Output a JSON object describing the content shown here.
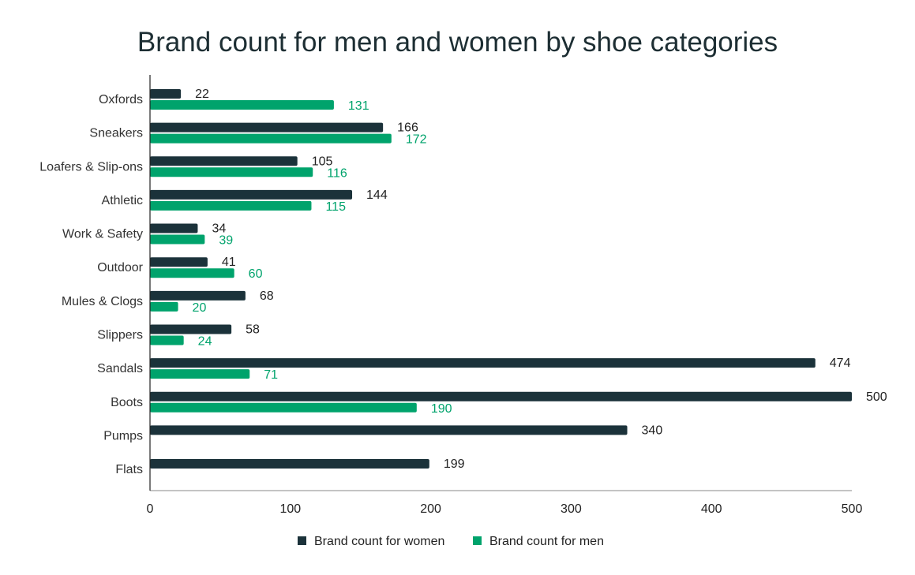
{
  "chart_data": {
    "type": "bar",
    "orientation": "horizontal",
    "title": "Brand count for men and women by shoe categories",
    "categories": [
      "Oxfords",
      "Sneakers",
      "Loafers & Slip-ons",
      "Athletic",
      "Work & Safety",
      "Outdoor",
      "Mules & Clogs",
      "Slippers",
      "Sandals",
      "Boots",
      "Pumps",
      "Flats"
    ],
    "series": [
      {
        "name": "Brand count for women",
        "color": "#1b323a",
        "values": [
          22,
          166,
          105,
          144,
          34,
          41,
          68,
          58,
          474,
          500,
          340,
          199
        ]
      },
      {
        "name": "Brand count for men",
        "color": "#00a36c",
        "values": [
          131,
          172,
          116,
          115,
          39,
          60,
          20,
          24,
          71,
          190,
          null,
          null
        ]
      }
    ],
    "xlim": [
      0,
      500
    ],
    "xticks": [
      0,
      100,
      200,
      300,
      400,
      500
    ],
    "grid": false,
    "legend": "bottom",
    "data_labels": true
  }
}
